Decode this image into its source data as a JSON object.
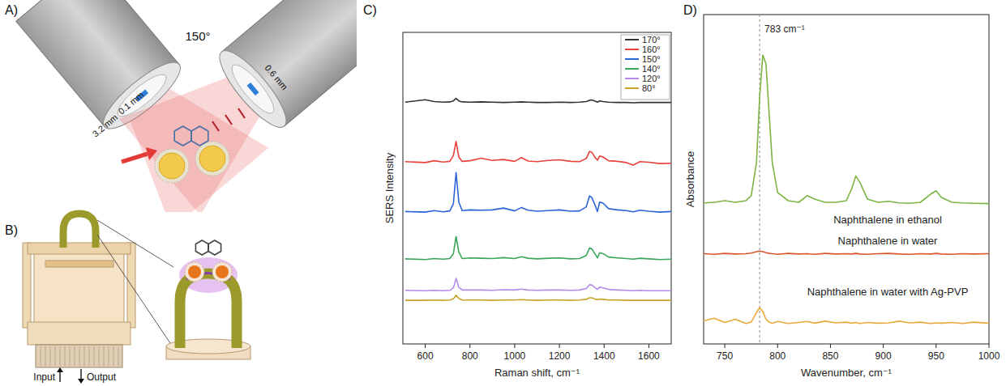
{
  "panel_labels": [
    "A)",
    "B)",
    "C)",
    "D)"
  ],
  "diagram_a": {
    "angle": "150°",
    "labels": [
      "0.1 mm",
      "3.2 mm",
      "0.6 mm"
    ]
  },
  "diagram_b": {
    "labels": [
      "Input",
      "Output"
    ]
  },
  "chart_data": [
    {
      "type": "line",
      "x_label": "Raman shift, cm⁻¹",
      "y_label": "SERS Intensity",
      "x": [
        510,
        600,
        640,
        680,
        710,
        726,
        738,
        750,
        765,
        800,
        850,
        900,
        950,
        1000,
        1030,
        1060,
        1100,
        1150,
        1200,
        1250,
        1290,
        1320,
        1335,
        1345,
        1360,
        1370,
        1380,
        1395,
        1420,
        1460,
        1500,
        1530,
        1560,
        1600,
        1650,
        1700
      ],
      "xlim": [
        500,
        1700
      ],
      "xticks": [
        600,
        800,
        1000,
        1200,
        1400,
        1600
      ],
      "ylim": [
        0,
        100
      ],
      "tick_labels": "x",
      "legend": "upper right",
      "series": [
        {
          "name": "170°",
          "color": "#333333",
          "values": [
            77.6,
            78.4,
            77.8,
            77.6,
            77.7,
            78,
            78.8,
            78,
            77.7,
            77.6,
            77.7,
            77.6,
            77.5,
            77.6,
            77.7,
            77.6,
            77.5,
            77.5,
            77.6,
            77.5,
            77.6,
            77.8,
            78.2,
            78.3,
            77.9,
            77.6,
            78,
            77.8,
            77.6,
            77.5,
            77.5,
            77.4,
            77.5,
            77.5,
            77.5,
            77.5
          ]
        },
        {
          "name": "160°",
          "color": "#e8413a",
          "values": [
            58.5,
            58.2,
            58.8,
            58.4,
            58.6,
            60.5,
            65,
            60,
            58.6,
            58.8,
            59.6,
            58.9,
            59.2,
            58.6,
            59.8,
            58.7,
            58.5,
            58.9,
            59.1,
            58.6,
            58.5,
            59.5,
            61.8,
            61.5,
            59.8,
            59,
            60.3,
            60,
            58.8,
            58.6,
            58.2,
            57.4,
            58.5,
            58.3,
            57.9,
            58
          ]
        },
        {
          "name": "150°",
          "color": "#2b63d9",
          "values": [
            42.5,
            42.3,
            42.8,
            42.4,
            42.7,
            45,
            55,
            45.5,
            42.8,
            43,
            42.9,
            43,
            43.6,
            42.7,
            43.8,
            42.9,
            42.6,
            42.8,
            43,
            42.6,
            42.7,
            44,
            47.5,
            47,
            44.5,
            42.5,
            45.5,
            45.2,
            43.4,
            43,
            42.8,
            42.4,
            42.9,
            42.6,
            42.3,
            42.5
          ]
        },
        {
          "name": "140°",
          "color": "#3aa65a",
          "values": [
            27.3,
            27.1,
            27.4,
            27.2,
            27.4,
            29,
            34.5,
            29.5,
            27.4,
            27.6,
            27.5,
            27.4,
            27.7,
            27.4,
            28,
            27.5,
            27.3,
            27.5,
            27.6,
            27.3,
            27.4,
            28.4,
            30.8,
            30.5,
            28.8,
            27.6,
            29.3,
            29,
            27.9,
            27.6,
            27.4,
            27.2,
            27.5,
            27.3,
            27.1,
            27.2
          ]
        },
        {
          "name": "120°",
          "color": "#b48be6",
          "values": [
            17.2,
            17.1,
            17.2,
            17.1,
            17.2,
            18,
            21,
            18.2,
            17.3,
            17.3,
            17.3,
            17.2,
            17.4,
            17.3,
            17.6,
            17.3,
            17.2,
            17.3,
            17.3,
            17.2,
            17.3,
            17.8,
            19,
            18.9,
            18,
            17.5,
            18.2,
            18,
            17.5,
            17.3,
            17.2,
            17.1,
            17.2,
            17.1,
            17.1,
            17.1
          ]
        },
        {
          "name": "80°",
          "color": "#c9a227",
          "values": [
            14,
            14,
            14.1,
            14,
            14.1,
            14.5,
            15.6,
            14.6,
            14.1,
            14.1,
            14.1,
            14,
            14.1,
            14.1,
            14.2,
            14.1,
            14,
            14.1,
            14.1,
            14,
            14.1,
            14.3,
            14.8,
            14.8,
            14.4,
            14.2,
            14.4,
            14.3,
            14.1,
            14.1,
            14,
            14,
            14,
            14,
            14,
            14
          ]
        }
      ]
    },
    {
      "type": "line",
      "x_label": "Wavenumber, cm⁻¹",
      "y_label": "Absorbance",
      "x": [
        730,
        740,
        750,
        760,
        770,
        775,
        780,
        783,
        786,
        789,
        792,
        795,
        800,
        810,
        820,
        828,
        835,
        845,
        855,
        865,
        870,
        874,
        878,
        885,
        895,
        905,
        915,
        925,
        935,
        945,
        950,
        955,
        965,
        975,
        985,
        1000
      ],
      "xlim": [
        730,
        1000
      ],
      "xticks": [
        750,
        800,
        850,
        900,
        950,
        1000
      ],
      "ylim": [
        0,
        100
      ],
      "tick_labels": "x",
      "annotations": [
        {
          "text": "783 cm⁻¹",
          "x": 783
        }
      ],
      "series": [
        {
          "name": "Naphthalene in ethanol",
          "color": "#7cb342",
          "values": [
            42.8,
            43,
            43.5,
            43,
            43.5,
            45,
            55,
            75,
            87.7,
            85,
            70,
            55,
            46,
            43.5,
            43,
            45,
            44,
            43,
            43,
            43.5,
            47,
            51,
            49,
            44,
            43,
            43.3,
            42.8,
            42.7,
            43,
            45.5,
            46.5,
            44.5,
            43,
            42.8,
            42.7,
            42.6
          ]
        },
        {
          "name": "Naphthalene in water",
          "color": "#d9562b",
          "values": [
            27.4,
            27.2,
            27.5,
            27.3,
            27.4,
            27.6,
            28,
            28.2,
            28,
            27.7,
            27.5,
            27.4,
            27.2,
            27.5,
            27.3,
            27.4,
            27.2,
            27.5,
            27.3,
            27.4,
            27.3,
            27.5,
            27.3,
            27.2,
            27.4,
            27.5,
            27.3,
            27.2,
            27.4,
            27.3,
            27.5,
            27.3,
            27.2,
            27.4,
            27.3,
            27.4
          ]
        },
        {
          "name": "Naphthalene in water with Ag-PVP",
          "color": "#e8a93a",
          "values": [
            7,
            7.8,
            6.5,
            7.5,
            6.2,
            6.6,
            9.5,
            11,
            9.8,
            7.5,
            6.6,
            6.3,
            6.8,
            6.2,
            6.5,
            6.8,
            6.3,
            6.9,
            6.4,
            6.6,
            6.3,
            6.5,
            6.2,
            6.5,
            6.3,
            6.4,
            6.9,
            6.4,
            6.6,
            6.2,
            6.4,
            6.3,
            6.5,
            6.2,
            6.6,
            6.3
          ]
        }
      ]
    }
  ]
}
